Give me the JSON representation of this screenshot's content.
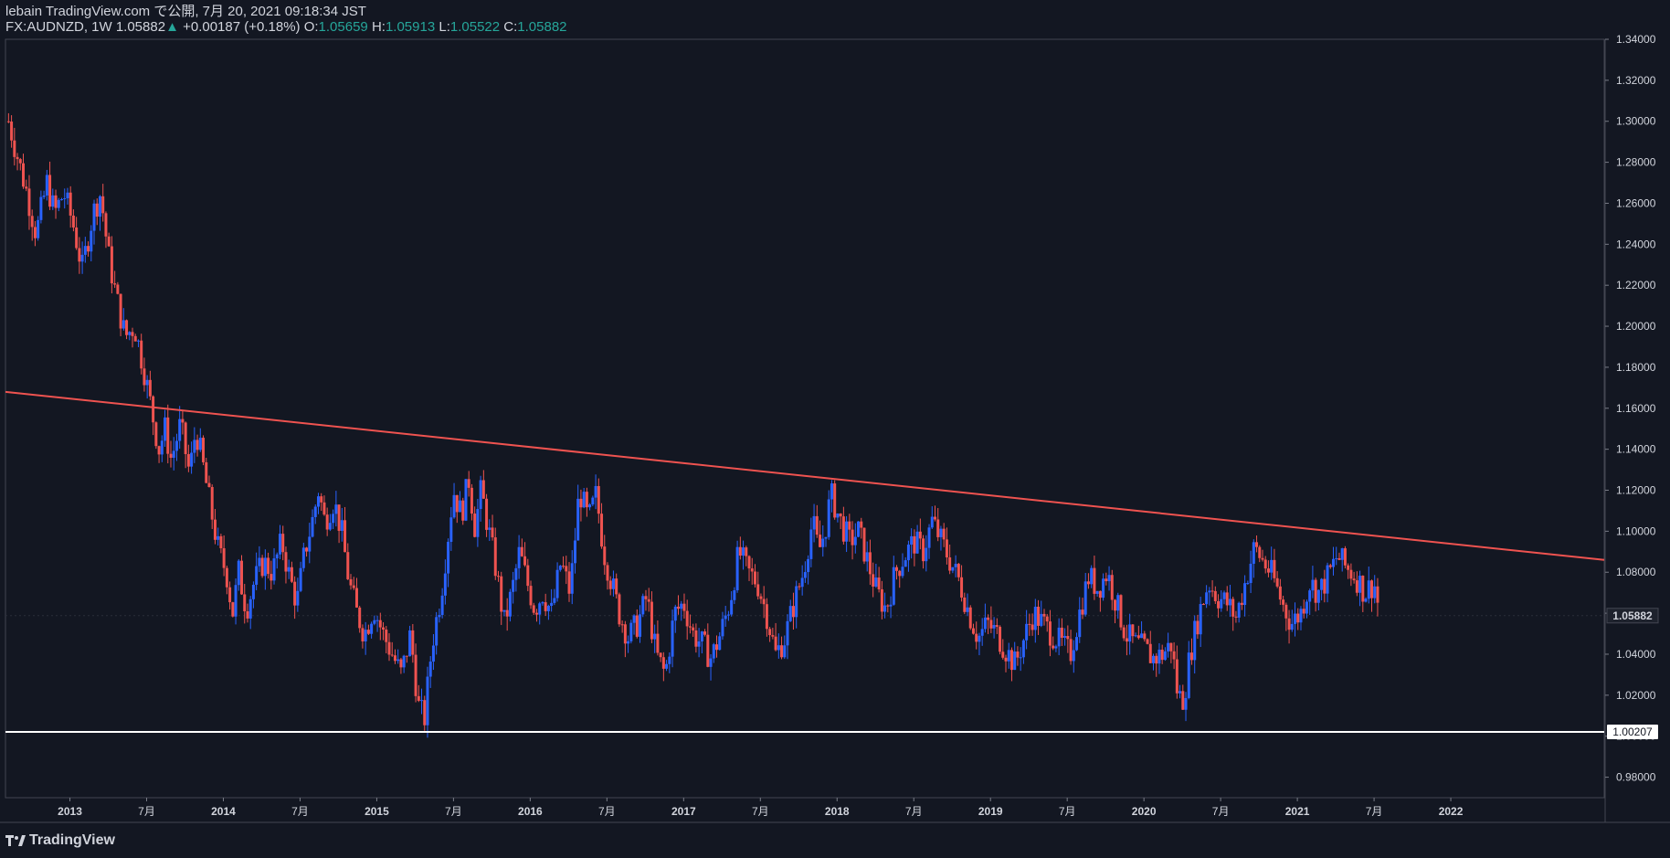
{
  "header": {
    "publish_line": "lebain TradingView.com で公開, 7月 20, 2021 09:18:34 JST",
    "symbol_line": "FX:AUDNZD, 1W 1.05882",
    "change_arrow": "▲",
    "change_text": "+0.00187 (+0.18%)",
    "o_label": "O:",
    "o_value": "1.05659",
    "h_label": "H:",
    "h_value": "1.05913",
    "l_label": "L:",
    "l_value": "1.05522",
    "c_label": "C:",
    "c_value": "1.05882"
  },
  "footer": {
    "brand": "TradingView",
    "logo_icon": "tradingview-logo-icon"
  },
  "colors": {
    "background": "#131722",
    "up": "#2962ff",
    "down": "#ef5350",
    "trendline": "#ef5350",
    "support": "#ffffff",
    "grid": "#2a2e39"
  },
  "chart_data": {
    "type": "candlestick",
    "symbol": "FX:AUDNZD",
    "interval": "1W",
    "ylim": [
      0.97,
      1.34
    ],
    "y_ticks": [
      "1.34000",
      "1.32000",
      "1.30000",
      "1.28000",
      "1.26000",
      "1.24000",
      "1.22000",
      "1.20000",
      "1.18000",
      "1.16000",
      "1.14000",
      "1.12000",
      "1.10000",
      "1.08000",
      "1.06000",
      "1.04000",
      "1.02000",
      "1.00000",
      "0.98000"
    ],
    "x_ticks": [
      {
        "label": "2013",
        "t": 2013.0
      },
      {
        "label": "7月",
        "t": 2013.5
      },
      {
        "label": "2014",
        "t": 2014.0
      },
      {
        "label": "7月",
        "t": 2014.5
      },
      {
        "label": "2015",
        "t": 2015.0
      },
      {
        "label": "7月",
        "t": 2015.5
      },
      {
        "label": "2016",
        "t": 2016.0
      },
      {
        "label": "7月",
        "t": 2016.5
      },
      {
        "label": "2017",
        "t": 2017.0
      },
      {
        "label": "7月",
        "t": 2017.5
      },
      {
        "label": "2018",
        "t": 2018.0
      },
      {
        "label": "7月",
        "t": 2018.5
      },
      {
        "label": "2019",
        "t": 2019.0
      },
      {
        "label": "7月",
        "t": 2019.5
      },
      {
        "label": "2020",
        "t": 2020.0
      },
      {
        "label": "7月",
        "t": 2020.5
      },
      {
        "label": "2021",
        "t": 2021.0
      },
      {
        "label": "7月",
        "t": 2021.5
      },
      {
        "label": "2022",
        "t": 2022.0
      }
    ],
    "xlim": [
      2012.58,
      2023.0
    ],
    "price_series": [
      [
        2012.6,
        1.3
      ],
      [
        2012.65,
        1.285
      ],
      [
        2012.72,
        1.265
      ],
      [
        2012.78,
        1.245
      ],
      [
        2012.85,
        1.27
      ],
      [
        2012.9,
        1.255
      ],
      [
        2012.96,
        1.265
      ],
      [
        2013.02,
        1.25
      ],
      [
        2013.08,
        1.228
      ],
      [
        2013.15,
        1.255
      ],
      [
        2013.2,
        1.265
      ],
      [
        2013.25,
        1.235
      ],
      [
        2013.3,
        1.215
      ],
      [
        2013.36,
        1.195
      ],
      [
        2013.42,
        1.2
      ],
      [
        2013.48,
        1.18
      ],
      [
        2013.53,
        1.16
      ],
      [
        2013.58,
        1.14
      ],
      [
        2013.62,
        1.15
      ],
      [
        2013.66,
        1.135
      ],
      [
        2013.72,
        1.152
      ],
      [
        2013.78,
        1.128
      ],
      [
        2013.82,
        1.15
      ],
      [
        2013.86,
        1.135
      ],
      [
        2013.92,
        1.11
      ],
      [
        2013.97,
        1.09
      ],
      [
        2014.02,
        1.08
      ],
      [
        2014.06,
        1.06
      ],
      [
        2014.1,
        1.08
      ],
      [
        2014.15,
        1.062
      ],
      [
        2014.2,
        1.075
      ],
      [
        2014.26,
        1.085
      ],
      [
        2014.32,
        1.08
      ],
      [
        2014.38,
        1.095
      ],
      [
        2014.43,
        1.078
      ],
      [
        2014.48,
        1.065
      ],
      [
        2014.53,
        1.09
      ],
      [
        2014.58,
        1.105
      ],
      [
        2014.62,
        1.12
      ],
      [
        2014.66,
        1.105
      ],
      [
        2014.72,
        1.115
      ],
      [
        2014.77,
        1.1
      ],
      [
        2014.82,
        1.075
      ],
      [
        2014.87,
        1.06
      ],
      [
        2014.92,
        1.05
      ],
      [
        2014.98,
        1.063
      ],
      [
        2015.04,
        1.05
      ],
      [
        2015.1,
        1.04
      ],
      [
        2015.16,
        1.03
      ],
      [
        2015.22,
        1.05
      ],
      [
        2015.27,
        1.015
      ],
      [
        2015.31,
        1.008
      ],
      [
        2015.36,
        1.045
      ],
      [
        2015.42,
        1.07
      ],
      [
        2015.46,
        1.095
      ],
      [
        2015.5,
        1.12
      ],
      [
        2015.55,
        1.108
      ],
      [
        2015.6,
        1.125
      ],
      [
        2015.64,
        1.102
      ],
      [
        2015.68,
        1.12
      ],
      [
        2015.73,
        1.1
      ],
      [
        2015.78,
        1.08
      ],
      [
        2015.83,
        1.055
      ],
      [
        2015.88,
        1.07
      ],
      [
        2015.93,
        1.09
      ],
      [
        2015.98,
        1.075
      ],
      [
        2016.03,
        1.062
      ],
      [
        2016.08,
        1.07
      ],
      [
        2016.14,
        1.06
      ],
      [
        2016.2,
        1.085
      ],
      [
        2016.26,
        1.07
      ],
      [
        2016.32,
        1.12
      ],
      [
        2016.38,
        1.105
      ],
      [
        2016.43,
        1.118
      ],
      [
        2016.48,
        1.09
      ],
      [
        2016.53,
        1.075
      ],
      [
        2016.58,
        1.06
      ],
      [
        2016.64,
        1.048
      ],
      [
        2016.7,
        1.055
      ],
      [
        2016.76,
        1.068
      ],
      [
        2016.82,
        1.04
      ],
      [
        2016.88,
        1.03
      ],
      [
        2016.94,
        1.06
      ],
      [
        2017.0,
        1.065
      ],
      [
        2017.06,
        1.05
      ],
      [
        2017.12,
        1.045
      ],
      [
        2017.18,
        1.038
      ],
      [
        2017.24,
        1.05
      ],
      [
        2017.3,
        1.065
      ],
      [
        2017.36,
        1.09
      ],
      [
        2017.42,
        1.08
      ],
      [
        2017.48,
        1.075
      ],
      [
        2017.54,
        1.06
      ],
      [
        2017.6,
        1.04
      ],
      [
        2017.66,
        1.048
      ],
      [
        2017.72,
        1.065
      ],
      [
        2017.78,
        1.08
      ],
      [
        2017.84,
        1.105
      ],
      [
        2017.88,
        1.09
      ],
      [
        2017.92,
        1.1
      ],
      [
        2017.96,
        1.118
      ],
      [
        2018.02,
        1.105
      ],
      [
        2018.08,
        1.095
      ],
      [
        2018.14,
        1.1
      ],
      [
        2018.2,
        1.085
      ],
      [
        2018.26,
        1.07
      ],
      [
        2018.32,
        1.062
      ],
      [
        2018.38,
        1.08
      ],
      [
        2018.44,
        1.088
      ],
      [
        2018.5,
        1.095
      ],
      [
        2018.56,
        1.09
      ],
      [
        2018.62,
        1.105
      ],
      [
        2018.68,
        1.095
      ],
      [
        2018.74,
        1.085
      ],
      [
        2018.8,
        1.075
      ],
      [
        2018.86,
        1.06
      ],
      [
        2018.92,
        1.048
      ],
      [
        2018.98,
        1.055
      ],
      [
        2019.04,
        1.05
      ],
      [
        2019.1,
        1.042
      ],
      [
        2019.16,
        1.035
      ],
      [
        2019.22,
        1.048
      ],
      [
        2019.28,
        1.06
      ],
      [
        2019.34,
        1.055
      ],
      [
        2019.4,
        1.05
      ],
      [
        2019.46,
        1.045
      ],
      [
        2019.52,
        1.04
      ],
      [
        2019.58,
        1.06
      ],
      [
        2019.64,
        1.078
      ],
      [
        2019.7,
        1.072
      ],
      [
        2019.76,
        1.08
      ],
      [
        2019.82,
        1.065
      ],
      [
        2019.88,
        1.05
      ],
      [
        2019.94,
        1.045
      ],
      [
        2020.0,
        1.043
      ],
      [
        2020.06,
        1.038
      ],
      [
        2020.12,
        1.04
      ],
      [
        2020.18,
        1.045
      ],
      [
        2020.22,
        1.02
      ],
      [
        2020.26,
        1.018
      ],
      [
        2020.3,
        1.04
      ],
      [
        2020.36,
        1.06
      ],
      [
        2020.42,
        1.075
      ],
      [
        2020.48,
        1.068
      ],
      [
        2020.54,
        1.065
      ],
      [
        2020.6,
        1.058
      ],
      [
        2020.66,
        1.075
      ],
      [
        2020.72,
        1.092
      ],
      [
        2020.78,
        1.085
      ],
      [
        2020.84,
        1.078
      ],
      [
        2020.9,
        1.065
      ],
      [
        2020.96,
        1.055
      ],
      [
        2021.02,
        1.06
      ],
      [
        2021.08,
        1.075
      ],
      [
        2021.14,
        1.07
      ],
      [
        2021.2,
        1.078
      ],
      [
        2021.26,
        1.088
      ],
      [
        2021.32,
        1.082
      ],
      [
        2021.38,
        1.078
      ],
      [
        2021.44,
        1.07
      ],
      [
        2021.5,
        1.075
      ],
      [
        2021.54,
        1.058
      ]
    ],
    "trendline": {
      "start": [
        2012.58,
        1.168
      ],
      "end": [
        2023.0,
        1.086
      ],
      "color": "#ef5350"
    },
    "support_line": {
      "value": 1.00207,
      "label": "1.00207",
      "color": "#ffffff"
    },
    "last_price": {
      "value": 1.05882,
      "label": "1.05882"
    }
  }
}
